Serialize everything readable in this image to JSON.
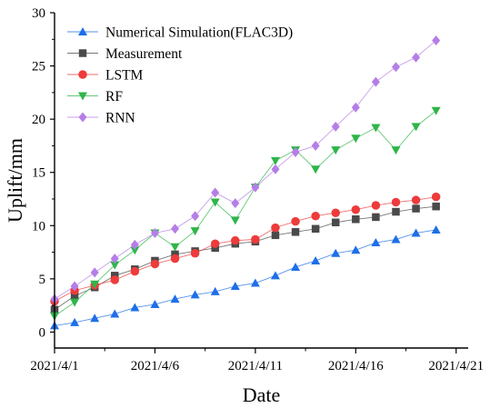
{
  "chart_data": {
    "type": "line",
    "xlabel": "Date",
    "ylabel": "Uplift/mm",
    "x_tick_labels": [
      "2021/4/1",
      "2021/4/6",
      "2021/4/11",
      "2021/4/16",
      "2021/4/21"
    ],
    "x_tick_values": [
      0,
      5,
      10,
      15,
      20
    ],
    "xlim": [
      0,
      20.6
    ],
    "y_ticks": [
      0,
      5,
      10,
      15,
      20,
      25,
      30
    ],
    "ylim": [
      -1.5,
      30
    ],
    "grid": false,
    "legend_position": "top-left",
    "series": [
      {
        "name": "Numerical Simulation(FLAC3D)",
        "marker": "triangle-up",
        "color": "#1e6fe8",
        "x": [
          0,
          1,
          2,
          3,
          4,
          5,
          6,
          7,
          8,
          9,
          10,
          11,
          12,
          13,
          14,
          15,
          16,
          17,
          18,
          19
        ],
        "values": [
          0.6,
          0.9,
          1.3,
          1.7,
          2.3,
          2.6,
          3.1,
          3.5,
          3.8,
          4.3,
          4.6,
          5.3,
          6.1,
          6.7,
          7.4,
          7.7,
          8.4,
          8.7,
          9.3,
          9.6
        ]
      },
      {
        "name": "Measurement",
        "marker": "square",
        "color": "#4a4a4a",
        "x": [
          0,
          1,
          2,
          3,
          4,
          5,
          6,
          7,
          8,
          9,
          10,
          11,
          12,
          13,
          14,
          15,
          16,
          17,
          18,
          19
        ],
        "values": [
          2.1,
          3.4,
          4.2,
          5.3,
          5.9,
          6.7,
          7.3,
          7.6,
          7.9,
          8.3,
          8.5,
          9.1,
          9.4,
          9.7,
          10.3,
          10.6,
          10.8,
          11.3,
          11.6,
          11.8
        ]
      },
      {
        "name": "LSTM",
        "marker": "circle",
        "color": "#ee3b3b",
        "x": [
          0,
          1,
          2,
          3,
          4,
          5,
          6,
          7,
          8,
          9,
          10,
          11,
          12,
          13,
          14,
          15,
          16,
          17,
          18,
          19
        ],
        "values": [
          2.9,
          3.9,
          4.4,
          4.9,
          5.7,
          6.4,
          6.9,
          7.4,
          8.3,
          8.6,
          8.7,
          9.8,
          10.4,
          10.9,
          11.2,
          11.5,
          11.9,
          12.2,
          12.4,
          12.7
        ]
      },
      {
        "name": "RF",
        "marker": "triangle-down",
        "color": "#2fb54a",
        "x": [
          0,
          1,
          2,
          3,
          4,
          5,
          6,
          7,
          8,
          9,
          10,
          11,
          12,
          13,
          14,
          15,
          16,
          17,
          18,
          19
        ],
        "values": [
          1.5,
          2.8,
          4.5,
          6.3,
          7.7,
          9.3,
          8.0,
          9.5,
          12.2,
          10.5,
          13.6,
          16.1,
          17.1,
          15.3,
          17.1,
          18.2,
          19.2,
          17.1,
          19.3,
          20.8
        ]
      },
      {
        "name": "RNN",
        "marker": "diamond",
        "color": "#b57ee6",
        "x": [
          0,
          1,
          2,
          3,
          4,
          5,
          6,
          7,
          8,
          9,
          10,
          11,
          12,
          13,
          14,
          15,
          16,
          17,
          18,
          19
        ],
        "values": [
          3.1,
          4.3,
          5.6,
          6.9,
          8.2,
          9.3,
          9.7,
          10.9,
          13.1,
          12.1,
          13.6,
          15.3,
          16.9,
          17.5,
          19.3,
          21.1,
          23.5,
          24.9,
          25.8,
          27.4
        ]
      }
    ]
  }
}
